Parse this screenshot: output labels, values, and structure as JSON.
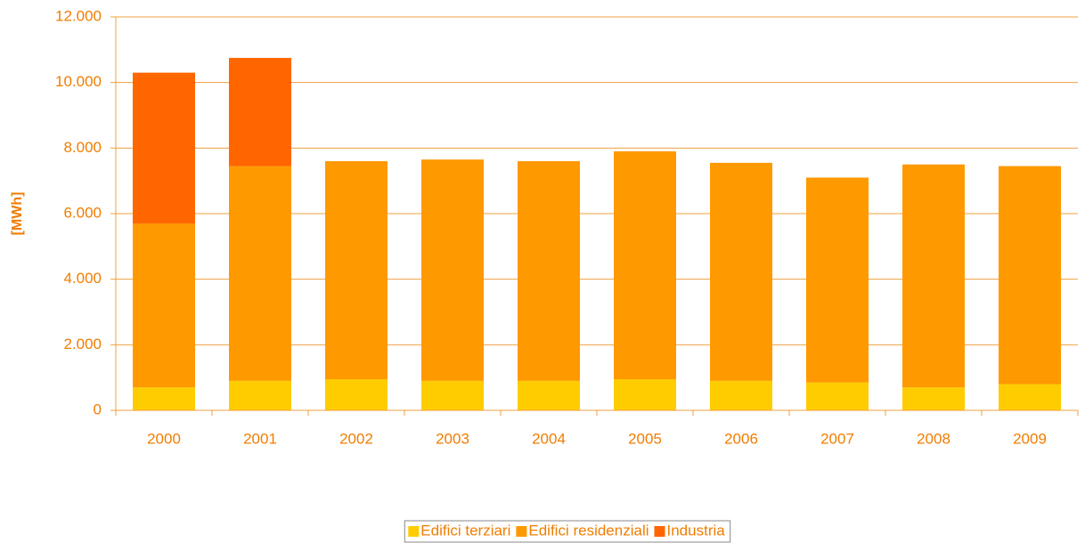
{
  "chart_data": {
    "type": "stacked_bar",
    "y_label": "[MWh]",
    "categories": [
      "2000",
      "2001",
      "2002",
      "2003",
      "2004",
      "2005",
      "2006",
      "2007",
      "2008",
      "2009"
    ],
    "series": [
      {
        "name": "Edifici terziari",
        "color": "#ffcc00",
        "values": [
          700,
          900,
          950,
          900,
          900,
          950,
          900,
          850,
          700,
          800
        ]
      },
      {
        "name": "Edifici residenziali",
        "color": "#ff9900",
        "values": [
          5000,
          6550,
          6650,
          6750,
          6700,
          6950,
          6650,
          6250,
          6800,
          6650
        ]
      },
      {
        "name": "Industria",
        "color": "#ff6600",
        "values": [
          4600,
          3300,
          0,
          0,
          0,
          0,
          0,
          0,
          0,
          0
        ]
      }
    ],
    "ylim": [
      0,
      12000
    ],
    "yticks": [
      0,
      {
        "value": 2000,
        "label": "2.000"
      },
      {
        "value": 4000,
        "label": "4.000"
      },
      {
        "value": 6000,
        "label": "6.000"
      },
      {
        "value": 8000,
        "label": "8.000"
      },
      {
        "value": 10000,
        "label": "10.000"
      },
      {
        "value": 12000,
        "label": "12.000"
      }
    ],
    "grid": true,
    "legend": "bottom"
  }
}
